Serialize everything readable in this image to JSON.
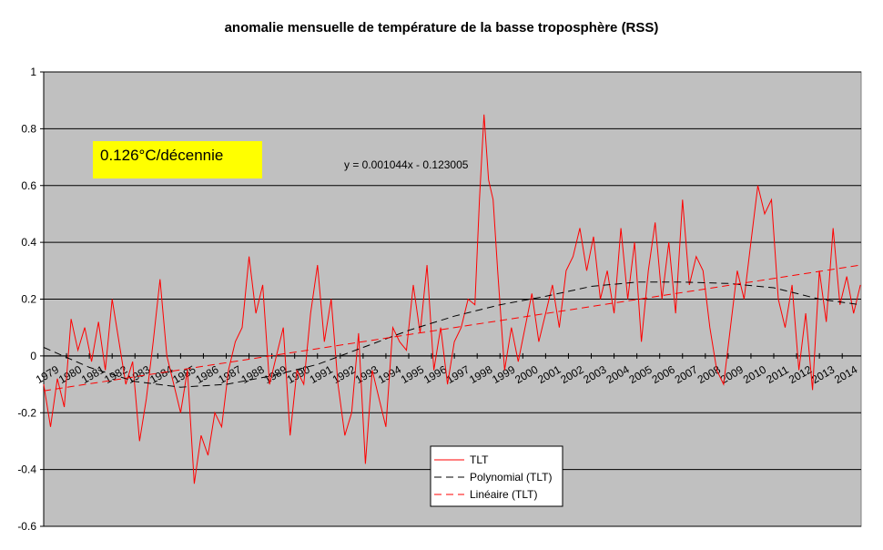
{
  "chart_data": {
    "type": "line",
    "title": "anomalie mensuelle de température de la basse troposphère (RSS)",
    "ylim": [
      -0.6,
      1.0
    ],
    "y_ticks": [
      "1",
      "0.8",
      "0.6",
      "0.4",
      "0.2",
      "0",
      "-0.2",
      "-0.4",
      "-0.6"
    ],
    "x_ticks": [
      "1979",
      "1980",
      "1981",
      "1982",
      "1983",
      "1984",
      "1985",
      "1986",
      "1987",
      "1988",
      "1989",
      "1990",
      "1991",
      "1992",
      "1993",
      "1994",
      "1995",
      "1996",
      "1997",
      "1998",
      "1999",
      "2000",
      "2001",
      "2002",
      "2003",
      "2004",
      "2005",
      "2006",
      "2007",
      "2008",
      "2009",
      "2010",
      "2011",
      "2012",
      "2013",
      "2014"
    ],
    "xlim": [
      1979.0,
      2014.83
    ],
    "grid": true,
    "legend_position": "bottom-center",
    "annotation_rate": "0.126°C/décennie",
    "annotation_equation": "y = 0.001044x - 0.123005",
    "colors": {
      "plot_bg": "#c0c0c0",
      "tlt": "#ff0000",
      "poly": "#000000",
      "linear": "#ff0000",
      "rate_box": "#ffff00"
    },
    "series": [
      {
        "name": "TLT",
        "style": "solid",
        "x": [
          1979.0,
          1979.3,
          1979.6,
          1979.9,
          1980.2,
          1980.5,
          1980.8,
          1981.1,
          1981.4,
          1981.7,
          1982.0,
          1982.3,
          1982.6,
          1982.9,
          1983.2,
          1983.5,
          1983.8,
          1984.1,
          1984.4,
          1984.7,
          1985.0,
          1985.3,
          1985.6,
          1985.9,
          1986.2,
          1986.5,
          1986.8,
          1987.1,
          1987.4,
          1987.7,
          1988.0,
          1988.3,
          1988.6,
          1988.9,
          1989.2,
          1989.5,
          1989.8,
          1990.1,
          1990.4,
          1990.7,
          1991.0,
          1991.3,
          1991.6,
          1991.9,
          1992.2,
          1992.5,
          1992.8,
          1993.1,
          1993.4,
          1993.7,
          1994.0,
          1994.3,
          1994.6,
          1994.9,
          1995.2,
          1995.5,
          1995.8,
          1996.1,
          1996.4,
          1996.7,
          1997.0,
          1997.3,
          1997.6,
          1997.9,
          1998.1,
          1998.3,
          1998.5,
          1998.7,
          1998.9,
          1999.2,
          1999.5,
          1999.8,
          2000.1,
          2000.4,
          2000.7,
          2001.0,
          2001.3,
          2001.6,
          2001.9,
          2002.2,
          2002.5,
          2002.8,
          2003.1,
          2003.4,
          2003.7,
          2004.0,
          2004.3,
          2004.6,
          2004.9,
          2005.2,
          2005.5,
          2005.8,
          2006.1,
          2006.4,
          2006.7,
          2007.0,
          2007.3,
          2007.6,
          2007.9,
          2008.2,
          2008.5,
          2008.8,
          2009.1,
          2009.4,
          2009.7,
          2010.0,
          2010.3,
          2010.6,
          2010.9,
          2011.2,
          2011.5,
          2011.8,
          2012.1,
          2012.4,
          2012.7,
          2013.0,
          2013.3,
          2013.6,
          2013.9,
          2014.2,
          2014.5,
          2014.8
        ],
        "values": [
          -0.1,
          -0.25,
          -0.08,
          -0.18,
          0.13,
          0.02,
          0.1,
          -0.02,
          0.12,
          -0.05,
          0.2,
          0.05,
          -0.1,
          -0.02,
          -0.3,
          -0.15,
          0.05,
          0.27,
          0.0,
          -0.1,
          -0.2,
          -0.05,
          -0.45,
          -0.28,
          -0.35,
          -0.2,
          -0.25,
          -0.05,
          0.05,
          0.1,
          0.35,
          0.15,
          0.25,
          -0.1,
          0.0,
          0.1,
          -0.28,
          -0.05,
          -0.1,
          0.15,
          0.32,
          0.05,
          0.2,
          -0.1,
          -0.28,
          -0.2,
          0.08,
          -0.38,
          -0.05,
          -0.15,
          -0.25,
          0.1,
          0.05,
          0.02,
          0.25,
          0.08,
          0.32,
          -0.05,
          0.1,
          -0.1,
          0.05,
          0.1,
          0.2,
          0.18,
          0.55,
          0.85,
          0.62,
          0.55,
          0.3,
          -0.05,
          0.1,
          -0.02,
          0.1,
          0.22,
          0.05,
          0.15,
          0.25,
          0.1,
          0.3,
          0.35,
          0.45,
          0.3,
          0.42,
          0.2,
          0.3,
          0.15,
          0.45,
          0.2,
          0.4,
          0.05,
          0.3,
          0.47,
          0.2,
          0.4,
          0.15,
          0.55,
          0.25,
          0.35,
          0.3,
          0.1,
          -0.05,
          -0.1,
          0.1,
          0.3,
          0.2,
          0.4,
          0.6,
          0.5,
          0.55,
          0.2,
          0.1,
          0.25,
          -0.05,
          0.15,
          -0.12,
          0.3,
          0.12,
          0.45,
          0.18,
          0.28,
          0.15,
          0.25
        ]
      },
      {
        "name": "Polynomial (TLT)",
        "style": "dashed",
        "x": [
          1979.0,
          1981.0,
          1983.0,
          1985.0,
          1987.0,
          1989.0,
          1991.0,
          1993.0,
          1995.0,
          1997.0,
          1999.0,
          2001.0,
          2003.0,
          2005.0,
          2007.0,
          2009.0,
          2011.0,
          2013.0,
          2014.8
        ],
        "values": [
          0.03,
          -0.04,
          -0.09,
          -0.11,
          -0.1,
          -0.07,
          -0.03,
          0.03,
          0.09,
          0.14,
          0.18,
          0.21,
          0.245,
          0.26,
          0.26,
          0.255,
          0.24,
          0.2,
          0.18
        ]
      },
      {
        "name": "Linéaire (TLT)",
        "style": "dashed",
        "x": [
          1979.0,
          2014.8
        ],
        "values": [
          -0.123,
          0.32
        ]
      }
    ]
  }
}
